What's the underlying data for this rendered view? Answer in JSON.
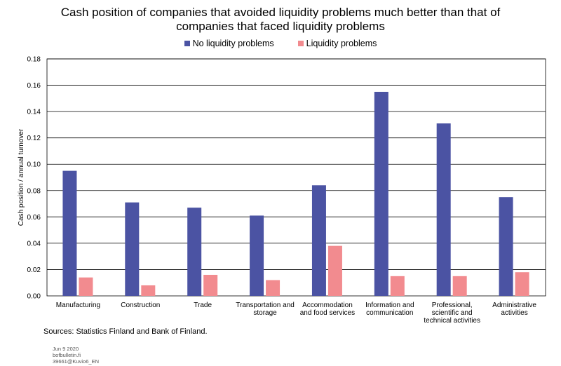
{
  "title_lines": [
    "Cash position of companies that avoided liquidity problems much better than that of",
    "companies that faced liquidity problems"
  ],
  "source": "Sources: Statistics Finland and Bank of Finland.",
  "meta": [
    "Jun 9 2020",
    "bofbulletin.fi",
    "39661@Kuvio6_EN"
  ],
  "chart_data": {
    "type": "bar",
    "title": "Cash position of companies that avoided liquidity problems much better than that of companies that faced liquidity problems",
    "ylabel": "Cash position / annual turnover",
    "xlabel": "",
    "ylim": [
      0,
      0.18
    ],
    "yticks": [
      "0.00",
      "0.02",
      "0.04",
      "0.06",
      "0.08",
      "0.10",
      "0.12",
      "0.14",
      "0.16",
      "0.18"
    ],
    "grid": true,
    "legend_position": "top",
    "categories": [
      [
        "Manufacturing"
      ],
      [
        "Construction"
      ],
      [
        "Trade"
      ],
      [
        "Transportation and",
        "storage"
      ],
      [
        "Accommodation",
        "and food services"
      ],
      [
        "Information and",
        "communication"
      ],
      [
        "Professional,",
        "scientific and",
        "technical activities"
      ],
      [
        "Administrative",
        "activities"
      ]
    ],
    "series": [
      {
        "name": "No liquidity problems",
        "color": "#4B53A3",
        "values": [
          0.095,
          0.071,
          0.067,
          0.061,
          0.084,
          0.155,
          0.131,
          0.075
        ]
      },
      {
        "name": "Liquidity problems",
        "color": "#F28B8F",
        "values": [
          0.014,
          0.008,
          0.016,
          0.012,
          0.038,
          0.015,
          0.015,
          0.018
        ]
      }
    ]
  }
}
